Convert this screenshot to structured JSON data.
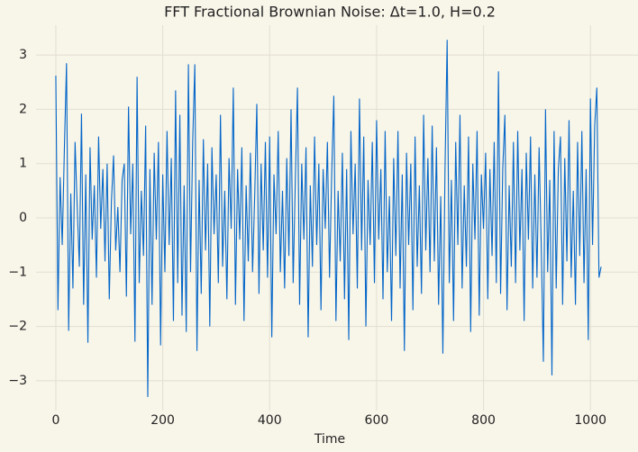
{
  "chart_data": {
    "type": "line",
    "title": "FFT Fractional Brownian Noise: Δt=1.0, H=0.2",
    "x_label": "Time",
    "xlim": [
      -37,
      1089
    ],
    "ylim": [
      -3.55,
      3.55
    ],
    "xticks": [
      0,
      200,
      400,
      600,
      800,
      1000
    ],
    "yticks": [
      {
        "value": -3,
        "label": "−3"
      },
      {
        "value": -2,
        "label": "−2"
      },
      {
        "value": -1,
        "label": "−1"
      },
      0,
      1,
      2,
      3
    ],
    "grid": true,
    "x": [
      0,
      4,
      8,
      12,
      16,
      20,
      24,
      28,
      32,
      36,
      40,
      44,
      48,
      52,
      56,
      60,
      64,
      68,
      72,
      76,
      80,
      84,
      88,
      92,
      96,
      100,
      104,
      108,
      112,
      116,
      120,
      124,
      128,
      132,
      136,
      140,
      144,
      148,
      152,
      156,
      160,
      164,
      168,
      172,
      176,
      180,
      184,
      188,
      192,
      196,
      200,
      204,
      208,
      212,
      216,
      220,
      224,
      228,
      232,
      236,
      240,
      244,
      248,
      252,
      256,
      260,
      264,
      268,
      272,
      276,
      280,
      284,
      288,
      292,
      296,
      300,
      304,
      308,
      312,
      316,
      320,
      324,
      328,
      332,
      336,
      340,
      344,
      348,
      352,
      356,
      360,
      364,
      368,
      372,
      376,
      380,
      384,
      388,
      392,
      396,
      400,
      404,
      408,
      412,
      416,
      420,
      424,
      428,
      432,
      436,
      440,
      444,
      448,
      452,
      456,
      460,
      464,
      468,
      472,
      476,
      480,
      484,
      488,
      492,
      496,
      500,
      504,
      508,
      512,
      516,
      520,
      524,
      528,
      532,
      536,
      540,
      544,
      548,
      552,
      556,
      560,
      564,
      568,
      572,
      576,
      580,
      584,
      588,
      592,
      596,
      600,
      604,
      608,
      612,
      616,
      620,
      624,
      628,
      632,
      636,
      640,
      644,
      648,
      652,
      656,
      660,
      664,
      668,
      672,
      676,
      680,
      684,
      688,
      692,
      696,
      700,
      704,
      708,
      712,
      716,
      720,
      724,
      728,
      732,
      736,
      740,
      744,
      748,
      752,
      756,
      760,
      764,
      768,
      772,
      776,
      780,
      784,
      788,
      792,
      796,
      800,
      804,
      808,
      812,
      816,
      820,
      824,
      828,
      832,
      836,
      840,
      844,
      848,
      852,
      856,
      860,
      864,
      868,
      872,
      876,
      880,
      884,
      888,
      892,
      896,
      900,
      904,
      908,
      912,
      916,
      920,
      924,
      928,
      932,
      936,
      940,
      944,
      948,
      952,
      956,
      960,
      964,
      968,
      972,
      976,
      980,
      984,
      988,
      992,
      996,
      1000,
      1004,
      1008,
      1012,
      1016,
      1020
    ],
    "series": [
      {
        "color": "#0466c8",
        "values": [
          2.62,
          -1.7,
          0.75,
          -0.5,
          1.27,
          2.85,
          -2.08,
          0.45,
          -1.3,
          1.4,
          0.2,
          -0.9,
          1.92,
          -1.6,
          0.8,
          -2.3,
          1.3,
          -0.4,
          0.6,
          -1.1,
          1.5,
          -0.2,
          0.9,
          -0.8,
          1.0,
          -1.5,
          0.3,
          1.15,
          -0.6,
          0.2,
          -1.0,
          0.7,
          1.0,
          -1.45,
          2.05,
          -0.3,
          1.0,
          -2.28,
          2.6,
          -1.2,
          0.5,
          -0.7,
          1.7,
          -3.3,
          0.9,
          -1.6,
          1.2,
          -0.4,
          1.4,
          -2.35,
          0.8,
          -1.0,
          1.6,
          -0.5,
          1.1,
          -1.9,
          2.35,
          -1.2,
          1.9,
          -1.8,
          0.6,
          -2.1,
          2.83,
          -1.0,
          1.4,
          2.83,
          -2.45,
          0.7,
          -1.4,
          1.45,
          -0.6,
          1.0,
          -2.0,
          1.3,
          -0.3,
          0.8,
          -1.2,
          1.9,
          -0.9,
          0.5,
          -1.5,
          1.1,
          -0.2,
          2.4,
          -1.6,
          0.9,
          -0.4,
          1.3,
          -1.9,
          0.6,
          -0.8,
          1.2,
          -1.0,
          0.4,
          2.1,
          -1.4,
          1.0,
          -0.6,
          1.4,
          -1.1,
          1.5,
          -2.2,
          0.8,
          -0.3,
          1.6,
          -1.0,
          0.5,
          -1.3,
          1.1,
          -0.7,
          2.0,
          -1.2,
          0.7,
          2.4,
          -1.6,
          1.0,
          -0.4,
          1.3,
          -2.2,
          0.6,
          -0.9,
          1.5,
          -0.5,
          1.0,
          -1.7,
          0.9,
          -0.2,
          1.4,
          -1.1,
          0.8,
          2.25,
          -1.9,
          0.5,
          -0.8,
          1.2,
          -1.5,
          0.9,
          -2.25,
          1.6,
          -0.3,
          1.0,
          -1.3,
          2.2,
          -0.6,
          1.5,
          -2.0,
          0.7,
          -0.5,
          1.4,
          -1.2,
          1.8,
          -0.4,
          0.9,
          -1.5,
          1.6,
          -1.0,
          0.4,
          -1.9,
          1.1,
          -0.7,
          1.6,
          -1.3,
          0.8,
          -2.45,
          1.2,
          -0.5,
          1.0,
          -1.7,
          1.5,
          -0.9,
          0.6,
          -1.4,
          1.9,
          -0.6,
          1.1,
          -1.0,
          1.7,
          -0.8,
          1.3,
          -1.6,
          0.4,
          -2.5,
          0.9,
          3.28,
          -1.2,
          0.7,
          -1.9,
          1.4,
          -0.5,
          1.9,
          -1.3,
          0.6,
          -0.9,
          1.5,
          -2.1,
          1.0,
          -0.4,
          1.6,
          -1.8,
          0.8,
          -0.2,
          1.2,
          -1.5,
          0.9,
          -0.7,
          1.4,
          -1.2,
          2.7,
          -1.4,
          0.9,
          1.9,
          -1.7,
          0.6,
          -0.9,
          1.4,
          -1.2,
          1.6,
          -0.6,
          0.9,
          -1.9,
          1.2,
          -0.4,
          1.5,
          -1.3,
          0.8,
          -1.1,
          1.3,
          -0.5,
          -2.65,
          2.0,
          -1.0,
          0.7,
          -2.9,
          1.6,
          -1.3,
          0.9,
          1.5,
          -1.6,
          1.1,
          -0.8,
          1.8,
          -1.1,
          0.5,
          -1.6,
          1.4,
          -0.7,
          1.6,
          -1.2,
          0.9,
          -2.25,
          2.2,
          -0.5,
          1.7,
          2.4,
          -1.1,
          -0.9
        ]
      }
    ]
  }
}
